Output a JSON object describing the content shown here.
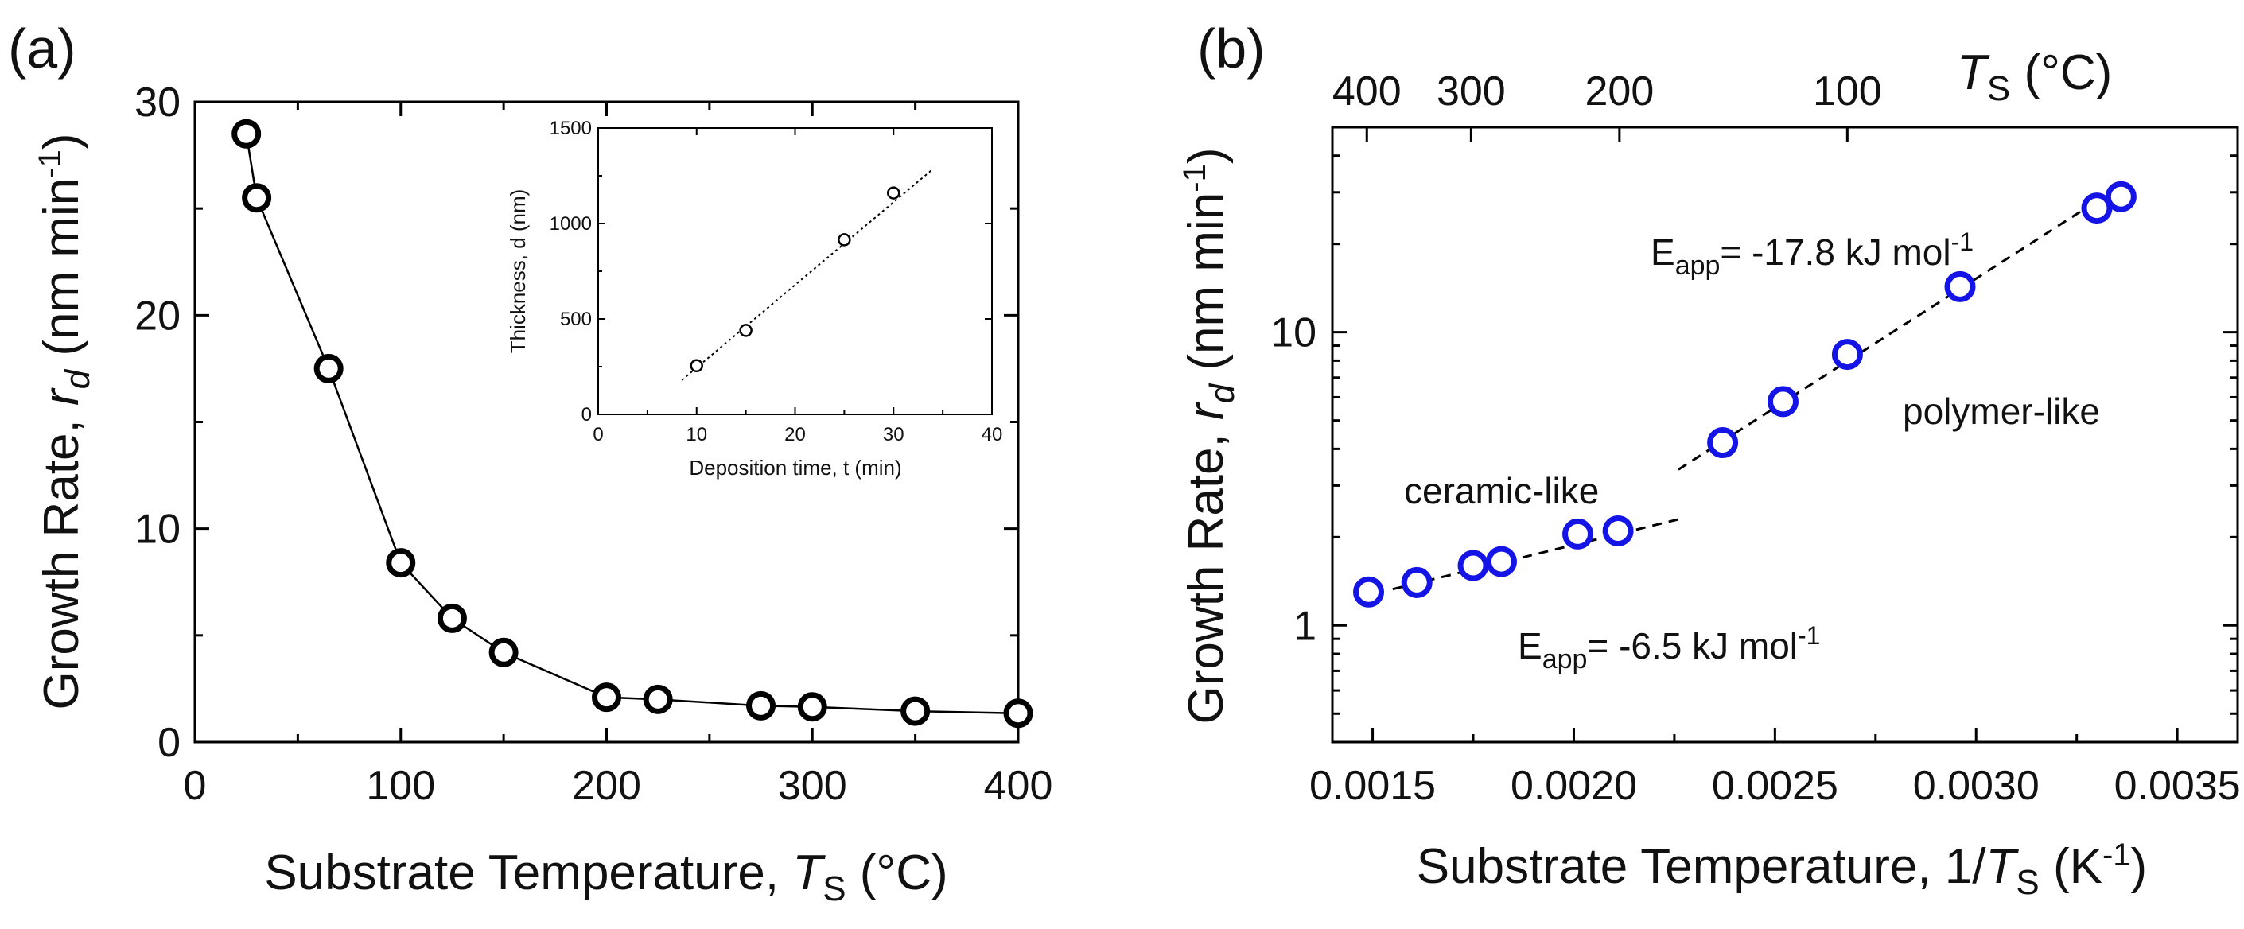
{
  "figure": {
    "panel_a_label": "(a)",
    "panel_b_label": "(b)"
  },
  "chart_data": [
    {
      "id": "a",
      "type": "line",
      "title": "",
      "xlabel_parts": [
        "Substrate Temperature, ",
        "T",
        "S",
        " (°C)"
      ],
      "ylabel_parts": [
        "Growth Rate, ",
        "r",
        "d",
        " (nm min",
        "-1",
        ")"
      ],
      "xlim": [
        0,
        400
      ],
      "ylim": [
        0,
        30
      ],
      "xticks": [
        0,
        100,
        200,
        300,
        400
      ],
      "yticks": [
        0,
        10,
        20,
        30
      ],
      "series": [
        {
          "name": "growth rate",
          "marker": "open-circle",
          "color": "#000000",
          "x": [
            25,
            30,
            65,
            100,
            125,
            150,
            200,
            225,
            275,
            300,
            350,
            400
          ],
          "y": [
            28.5,
            25.5,
            17.5,
            8.4,
            5.8,
            4.2,
            2.1,
            2.0,
            1.7,
            1.65,
            1.45,
            1.35
          ]
        }
      ]
    },
    {
      "id": "a-inset",
      "type": "scatter",
      "title": "",
      "xlabel": "Deposition time, t (min)",
      "ylabel": "Thickness, d (nm)",
      "xlim": [
        0,
        40
      ],
      "ylim": [
        0,
        1500
      ],
      "xticks": [
        0,
        10,
        20,
        30,
        40
      ],
      "yticks": [
        0,
        500,
        1000,
        1500
      ],
      "series": [
        {
          "name": "thickness",
          "marker": "open-circle",
          "color": "#000000",
          "x": [
            10,
            15,
            25,
            30
          ],
          "y": [
            255,
            440,
            915,
            1160
          ]
        }
      ],
      "fit_line": {
        "style": "dotted",
        "x": [
          8.5,
          34
        ],
        "y": [
          180,
          1285
        ]
      }
    },
    {
      "id": "b",
      "type": "scatter",
      "title": "",
      "xlabel_parts": [
        "Substrate Temperature, 1/",
        "T",
        "S",
        " (K",
        "-1",
        ")"
      ],
      "ylabel_parts": [
        "Growth Rate, ",
        "r",
        "d",
        " (nm min",
        "-1",
        ")"
      ],
      "top_axis_label_parts": [
        "T",
        "S",
        " (°C)"
      ],
      "yscale": "log",
      "xlim": [
        0.0014,
        0.00365
      ],
      "ylim": [
        0.4,
        50
      ],
      "xticks": [
        "0.0015",
        "0.0020",
        "0.0025",
        "0.0030",
        "0.0035"
      ],
      "xtick_values": [
        0.0015,
        0.002,
        0.0025,
        0.003,
        0.0035
      ],
      "yticks": [
        "1",
        "10"
      ],
      "ytick_values": [
        1,
        10
      ],
      "top_ticks": [
        "400",
        "300",
        "200",
        "100"
      ],
      "top_tick_values_C": [
        400,
        300,
        200,
        100
      ],
      "series": [
        {
          "name": "growth rate",
          "marker": "open-circle",
          "color": "#1414e6",
          "x": [
            0.00149,
            0.00161,
            0.00175,
            0.00182,
            0.00201,
            0.00211,
            0.00237,
            0.00252,
            0.00268,
            0.00296,
            0.0033,
            0.00336
          ],
          "y": [
            1.3,
            1.4,
            1.6,
            1.65,
            2.05,
            2.1,
            4.2,
            5.8,
            8.4,
            14.3,
            26.5,
            29.0
          ]
        }
      ],
      "fit_lines": [
        {
          "style": "dashed",
          "x": [
            0.00155,
            0.00226
          ],
          "y": [
            1.33,
            2.3
          ]
        },
        {
          "style": "dashed",
          "x": [
            0.00226,
            0.0033
          ],
          "y": [
            3.4,
            28.0
          ]
        }
      ],
      "annotations": [
        {
          "name": "upper-eapp",
          "parts": [
            "E",
            "app",
            "= -17.8 kJ mol",
            "-1"
          ]
        },
        {
          "name": "polymer-like",
          "text": "polymer-like"
        },
        {
          "name": "ceramic-like",
          "text": "ceramic-like"
        },
        {
          "name": "lower-eapp",
          "parts": [
            "E",
            "app",
            "= -6.5 kJ mol",
            "-1"
          ]
        }
      ]
    }
  ]
}
